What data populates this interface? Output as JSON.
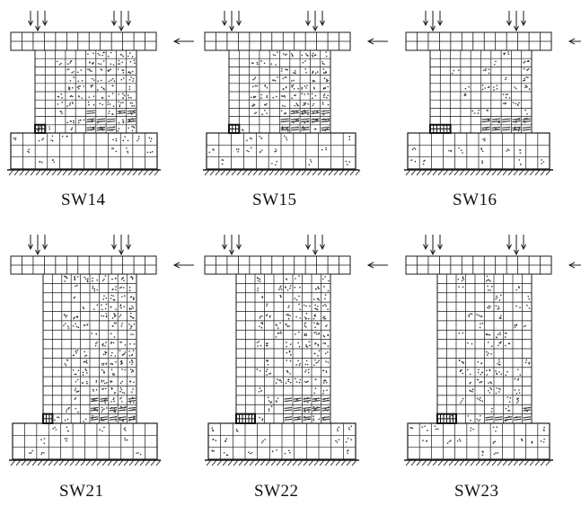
{
  "panels": [
    {
      "label": "SW14",
      "crack_zone": "upper-right-dense"
    },
    {
      "label": "SW15",
      "crack_zone": "upper-right-dense"
    },
    {
      "label": "SW16",
      "crack_zone": "right-medium"
    },
    {
      "label": "SW21",
      "crack_zone": "right-dense"
    },
    {
      "label": "SW22",
      "crack_zone": "right-dense"
    },
    {
      "label": "SW23",
      "crack_zone": "right-sparse"
    }
  ],
  "colors": {
    "line": "#1a1a1a",
    "crack": "#333333",
    "crushed": "#111111",
    "background": "#ffffff"
  }
}
